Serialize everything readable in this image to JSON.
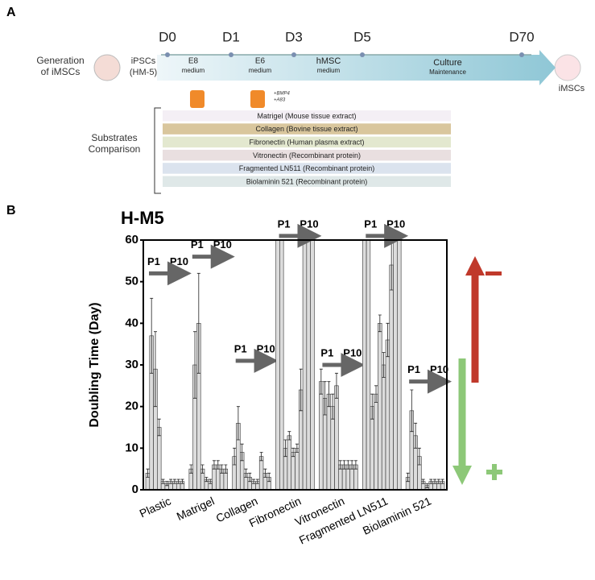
{
  "panel_a": {
    "label": "A",
    "generation": [
      "Generation",
      "of iMSCs"
    ],
    "start_cells": [
      "iPSCs",
      "(HM-5)"
    ],
    "days": [
      "D0",
      "D1",
      "D3",
      "D5",
      "D70"
    ],
    "stages": [
      [
        "E8",
        "medium"
      ],
      [
        "E6",
        "medium"
      ],
      [
        "hMSC",
        "medium"
      ],
      [
        "Culture",
        "Maintenance"
      ]
    ],
    "supplements": [
      "+BMP4",
      "+A83"
    ],
    "end_cells": "iMSCs",
    "comparison": [
      "Substrates",
      "Comparison"
    ],
    "substrates": [
      "Matrigel (Mouse tissue extract)",
      "Collagen (Bovine tissue extract)",
      "Fibronectin (Human plasma extract)",
      "Vitronectin (Recombinant protein)",
      "Fragmented LN511 (Recombinant protein)",
      "Biolaminin 521 (Recombinant protein)"
    ],
    "substrate_colors": [
      "#f4eff5",
      "#d9c69d",
      "#e3e8cf",
      "#e9dfe0",
      "#dbe3ee",
      "#dfe8e8"
    ]
  },
  "chart_data": {
    "type": "grouped_bar",
    "panel_label": "B",
    "title": "H-M5",
    "y_label": "Doubling Time (Day)",
    "categories": [
      "Plastic",
      "Matrigel",
      "Collagen",
      "Fibronectin",
      "Vitronectin",
      "Fragmented LN511",
      "Biolaminin 521"
    ],
    "values": [
      [
        4,
        37,
        29,
        15,
        2,
        1.5,
        2,
        2,
        2,
        2
      ],
      [
        5,
        30,
        40,
        5,
        2.5,
        2,
        6,
        6,
        5,
        5
      ],
      [
        8,
        16,
        9,
        4,
        3,
        2,
        2,
        8,
        4,
        3
      ],
      [
        60,
        60,
        10,
        13,
        9,
        10,
        24,
        60,
        60,
        60
      ],
      [
        26,
        22,
        23,
        20,
        25,
        6,
        6,
        6,
        6,
        6
      ],
      [
        60,
        60,
        20,
        23,
        40,
        30,
        36,
        54,
        60,
        60
      ],
      [
        3,
        19,
        13,
        8,
        2,
        1,
        2,
        2,
        2,
        2
      ]
    ],
    "errors": [
      [
        1,
        9,
        9,
        2,
        0.5,
        0.5,
        0.5,
        0.5,
        0.5,
        0.5
      ],
      [
        1,
        8,
        12,
        1,
        0.5,
        0.5,
        1,
        1,
        1,
        1
      ],
      [
        2,
        4,
        2,
        1,
        1,
        0.5,
        0.5,
        1,
        1,
        1
      ],
      [
        0,
        0,
        2,
        1,
        1,
        1,
        5,
        0,
        0,
        0
      ],
      [
        3,
        4,
        3,
        3,
        3,
        1,
        1,
        1,
        1,
        1
      ],
      [
        0,
        0,
        3,
        2,
        2,
        3,
        4,
        6,
        0,
        0
      ],
      [
        1,
        5,
        3,
        2,
        0.5,
        0.5,
        0.5,
        0.5,
        0.5,
        0.5
      ]
    ],
    "annotations": [
      "P1",
      "P10"
    ],
    "color": "#dcdcdc",
    "ylim": [
      0,
      60
    ],
    "yticks": [
      0,
      10,
      20,
      30,
      40,
      50,
      60
    ]
  }
}
